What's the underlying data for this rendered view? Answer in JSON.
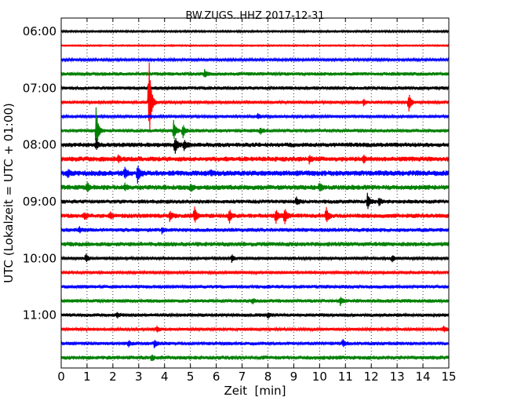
{
  "chart_data": {
    "type": "line",
    "title": "BW.ZUGS..HHZ 2017-12-31",
    "xlabel": "Zeit  [min]",
    "ylabel": "UTC (Lokalzeit = UTC + 01:00)",
    "xlim": [
      0,
      15
    ],
    "x_ticks": [
      "0",
      "1",
      "2",
      "3",
      "4",
      "5",
      "6",
      "7",
      "8",
      "9",
      "10",
      "11",
      "12",
      "13",
      "14",
      "15"
    ],
    "y_ticks": [
      {
        "label": "06:00",
        "row": 0
      },
      {
        "label": "07:00",
        "row": 4
      },
      {
        "label": "08:00",
        "row": 8
      },
      {
        "label": "09:00",
        "row": 12
      },
      {
        "label": "10:00",
        "row": 16
      },
      {
        "label": "11:00",
        "row": 20
      }
    ],
    "grid": "vertical-dotted",
    "row_interval_min": 15,
    "colors": [
      "#000000",
      "#ff0000",
      "#0000ff",
      "#008000"
    ],
    "rows": [
      {
        "start": "06:00",
        "noise": 0.18,
        "events": []
      },
      {
        "start": "06:15",
        "noise": 0.14,
        "events": []
      },
      {
        "start": "06:30",
        "noise": 0.25,
        "events": []
      },
      {
        "start": "06:45",
        "noise": 0.35,
        "events": [
          {
            "t": 5.55,
            "amp": 1.0
          }
        ]
      },
      {
        "start": "07:00",
        "noise": 0.35,
        "events": []
      },
      {
        "start": "07:15",
        "noise": 0.3,
        "events": [
          {
            "t": 3.4,
            "amp": 12.0
          },
          {
            "t": 11.7,
            "amp": 0.8
          },
          {
            "t": 13.45,
            "amp": 2.6
          }
        ]
      },
      {
        "start": "07:30",
        "noise": 0.3,
        "events": [
          {
            "t": 7.6,
            "amp": 0.6
          }
        ]
      },
      {
        "start": "07:45",
        "noise": 0.35,
        "events": [
          {
            "t": 1.35,
            "amp": 6.0
          },
          {
            "t": 4.35,
            "amp": 2.6
          },
          {
            "t": 4.7,
            "amp": 2.0
          },
          {
            "t": 7.7,
            "amp": 0.8
          }
        ]
      },
      {
        "start": "08:00",
        "noise": 0.45,
        "events": [
          {
            "t": 1.35,
            "amp": 1.5
          },
          {
            "t": 4.4,
            "amp": 2.4
          },
          {
            "t": 4.75,
            "amp": 1.3
          }
        ]
      },
      {
        "start": "08:15",
        "noise": 0.5,
        "events": [
          {
            "t": 2.2,
            "amp": 0.8
          },
          {
            "t": 9.6,
            "amp": 1.0
          },
          {
            "t": 11.7,
            "amp": 0.8
          }
        ]
      },
      {
        "start": "08:30",
        "noise": 0.55,
        "events": [
          {
            "t": 0.25,
            "amp": 0.9
          },
          {
            "t": 2.45,
            "amp": 1.6
          },
          {
            "t": 2.95,
            "amp": 2.4
          },
          {
            "t": 5.8,
            "amp": 0.6
          }
        ]
      },
      {
        "start": "08:45",
        "noise": 0.5,
        "events": [
          {
            "t": 1.0,
            "amp": 1.2
          },
          {
            "t": 2.45,
            "amp": 0.8
          },
          {
            "t": 5.0,
            "amp": 1.0
          },
          {
            "t": 10.0,
            "amp": 1.0
          }
        ]
      },
      {
        "start": "09:00",
        "noise": 0.4,
        "events": [
          {
            "t": 9.1,
            "amp": 1.0
          },
          {
            "t": 11.85,
            "amp": 2.2
          },
          {
            "t": 12.3,
            "amp": 1.0
          }
        ]
      },
      {
        "start": "09:15",
        "noise": 0.45,
        "events": [
          {
            "t": 0.9,
            "amp": 0.8
          },
          {
            "t": 1.9,
            "amp": 0.8
          },
          {
            "t": 4.2,
            "amp": 1.3
          },
          {
            "t": 5.15,
            "amp": 2.4
          },
          {
            "t": 6.5,
            "amp": 2.0
          },
          {
            "t": 8.3,
            "amp": 2.0
          },
          {
            "t": 8.65,
            "amp": 2.2
          },
          {
            "t": 10.25,
            "amp": 2.4
          }
        ]
      },
      {
        "start": "09:30",
        "noise": 0.4,
        "events": [
          {
            "t": 0.7,
            "amp": 0.6
          },
          {
            "t": 3.9,
            "amp": 0.7
          }
        ]
      },
      {
        "start": "09:45",
        "noise": 0.45,
        "events": []
      },
      {
        "start": "10:00",
        "noise": 0.3,
        "events": [
          {
            "t": 0.95,
            "amp": 1.2
          },
          {
            "t": 6.6,
            "amp": 1.0
          },
          {
            "t": 12.8,
            "amp": 0.9
          }
        ]
      },
      {
        "start": "10:15",
        "noise": 0.3,
        "events": []
      },
      {
        "start": "10:30",
        "noise": 0.35,
        "events": []
      },
      {
        "start": "10:45",
        "noise": 0.35,
        "events": [
          {
            "t": 7.4,
            "amp": 0.8
          },
          {
            "t": 10.8,
            "amp": 1.0
          }
        ]
      },
      {
        "start": "11:00",
        "noise": 0.35,
        "events": [
          {
            "t": 2.15,
            "amp": 0.8
          },
          {
            "t": 8.0,
            "amp": 0.7
          }
        ]
      },
      {
        "start": "11:15",
        "noise": 0.3,
        "events": [
          {
            "t": 3.7,
            "amp": 0.8
          },
          {
            "t": 14.8,
            "amp": 0.8
          }
        ]
      },
      {
        "start": "11:30",
        "noise": 0.35,
        "events": [
          {
            "t": 2.6,
            "amp": 0.8
          },
          {
            "t": 3.6,
            "amp": 1.0
          },
          {
            "t": 10.9,
            "amp": 0.9
          }
        ]
      },
      {
        "start": "11:45",
        "noise": 0.4,
        "events": [
          {
            "t": 3.5,
            "amp": 0.8
          }
        ]
      }
    ]
  }
}
